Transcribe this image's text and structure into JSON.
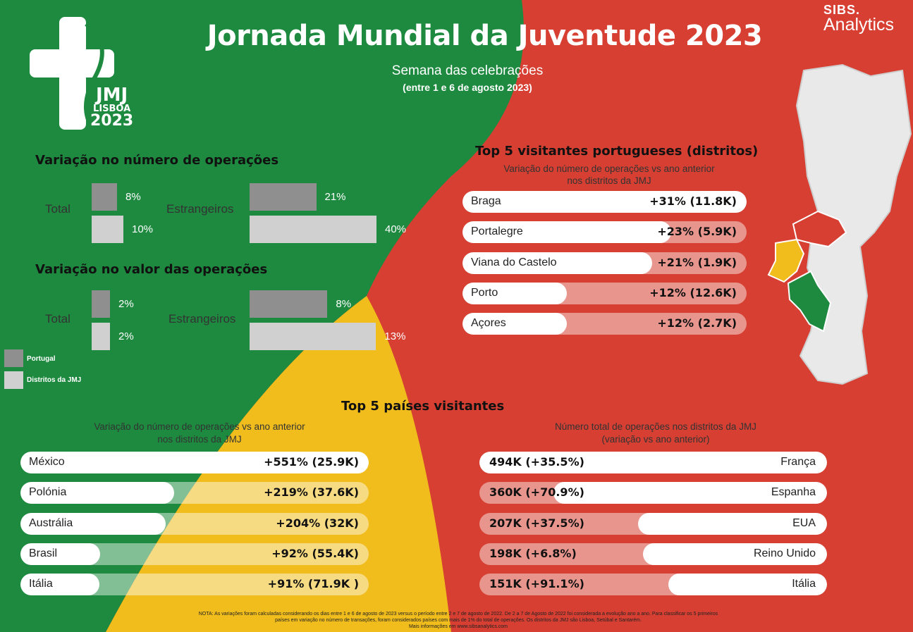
{
  "header": {
    "title": "Jornada Mundial da Juventude 2023",
    "subtitle": "Semana das celebrações",
    "subtitle2": "(entre 1 e 6 de agosto 2023)",
    "brand_top": "SIBS.",
    "brand_bottom": "Analytics",
    "logo": {
      "l1": "JMJ",
      "l2": "LISBOA",
      "l3": "2023"
    }
  },
  "colors": {
    "green": "#1d8a3f",
    "red": "#d63f32",
    "yellow": "#f0bd1c",
    "bar_portugal": "#8f8f8f",
    "bar_jmj": "#d0d0d0"
  },
  "legend": {
    "portugal": "Portugal",
    "jmj": "Distritos da JMJ"
  },
  "chart_data": [
    {
      "type": "bar",
      "title": "Variação no número de operações",
      "categories": [
        "Total",
        "Estrangeiros"
      ],
      "series": [
        {
          "name": "Portugal",
          "values": [
            8,
            21
          ],
          "labels": [
            "8%",
            "21%"
          ]
        },
        {
          "name": "Distritos da JMJ",
          "values": [
            10,
            40
          ],
          "labels": [
            "10%",
            "40%"
          ]
        }
      ]
    },
    {
      "type": "bar",
      "title": "Variação no valor das operações",
      "categories": [
        "Total",
        "Estrangeiros"
      ],
      "series": [
        {
          "name": "Portugal",
          "values": [
            2,
            8
          ],
          "labels": [
            "2%",
            "8%"
          ]
        },
        {
          "name": "Distritos da JMJ",
          "values": [
            2,
            13
          ],
          "labels": [
            "2%",
            "13%"
          ]
        }
      ]
    },
    {
      "type": "bar",
      "title": "Top 5 visitantes portugueses (distritos)",
      "subtitle": "Variação do número de operações vs ano anterior nos distritos da JMJ",
      "categories": [
        "Braga",
        "Portalegre",
        "Viana do Castelo",
        "Porto",
        "Açores"
      ],
      "values": [
        31,
        23,
        21,
        12,
        12
      ],
      "labels": [
        "+31% (11.8K)",
        "+23% (5.9K)",
        "+21% (1.9K)",
        "+12% (12.6K)",
        "+12% (2.7K)"
      ]
    },
    {
      "type": "bar",
      "title": "Top 5 países visitantes",
      "subtitle": "Variação do número de operações vs ano anterior nos distritos da JMJ",
      "categories": [
        "México",
        "Polónia",
        "Austrália",
        "Brasil",
        "Itália"
      ],
      "values": [
        551,
        219,
        204,
        92,
        91
      ],
      "labels": [
        "+551% (25.9K)",
        "+219% (37.6K)",
        "+204% (32K)",
        "+92% (55.4K)",
        "+91% (71.9K )"
      ]
    },
    {
      "type": "bar",
      "subtitle": "Número total de operações nos distritos da JMJ (variação vs ano anterior)",
      "categories": [
        "França",
        "Espanha",
        "EUA",
        "Reino Unido",
        "Itália"
      ],
      "values": [
        494,
        360,
        207,
        198,
        151
      ],
      "labels": [
        "494K (+35.5%)",
        "360K (+70.9%)",
        "207K (+37.5%)",
        "198K (+6.8%)",
        "151K (+91.1%)"
      ]
    }
  ],
  "sections": {
    "ops_count_title": "Variação no número de operações",
    "ops_value_title": "Variação no valor das operações",
    "total_label": "Total",
    "foreign_label": "Estrangeiros",
    "pt_title": "Top 5 visitantes portugueses (distritos)",
    "pt_sub1": "Variação do número de operações vs ano anterior",
    "pt_sub2": "nos distritos da JMJ",
    "countries_title": "Top 5 países visitantes",
    "left_sub1": "Variação do número de operações vs ano anterior",
    "left_sub2": "nos distritos da JMJ",
    "right_sub1": "Número total de operações nos distritos da JMJ",
    "right_sub2": "(variação vs ano anterior)"
  },
  "note": {
    "l1": "NOTA: As variações foram calculadas considerando os dias entre 1 e 6 de agosto de 2023 versus o período entre 2 e 7 de agosto de 2022. De 2 a 7 de Agosto de 2022 foi considerada a evolução ano a ano. Para classificar os 5 primeiros",
    "l2": "países em variação no número de transações, foram considerados países com mais de 1% do total de operações. Os distritos da JMJ são Lisboa, Setúbal e Santarém.",
    "l3": "Mais informações em www.sibsanalytics.com"
  }
}
